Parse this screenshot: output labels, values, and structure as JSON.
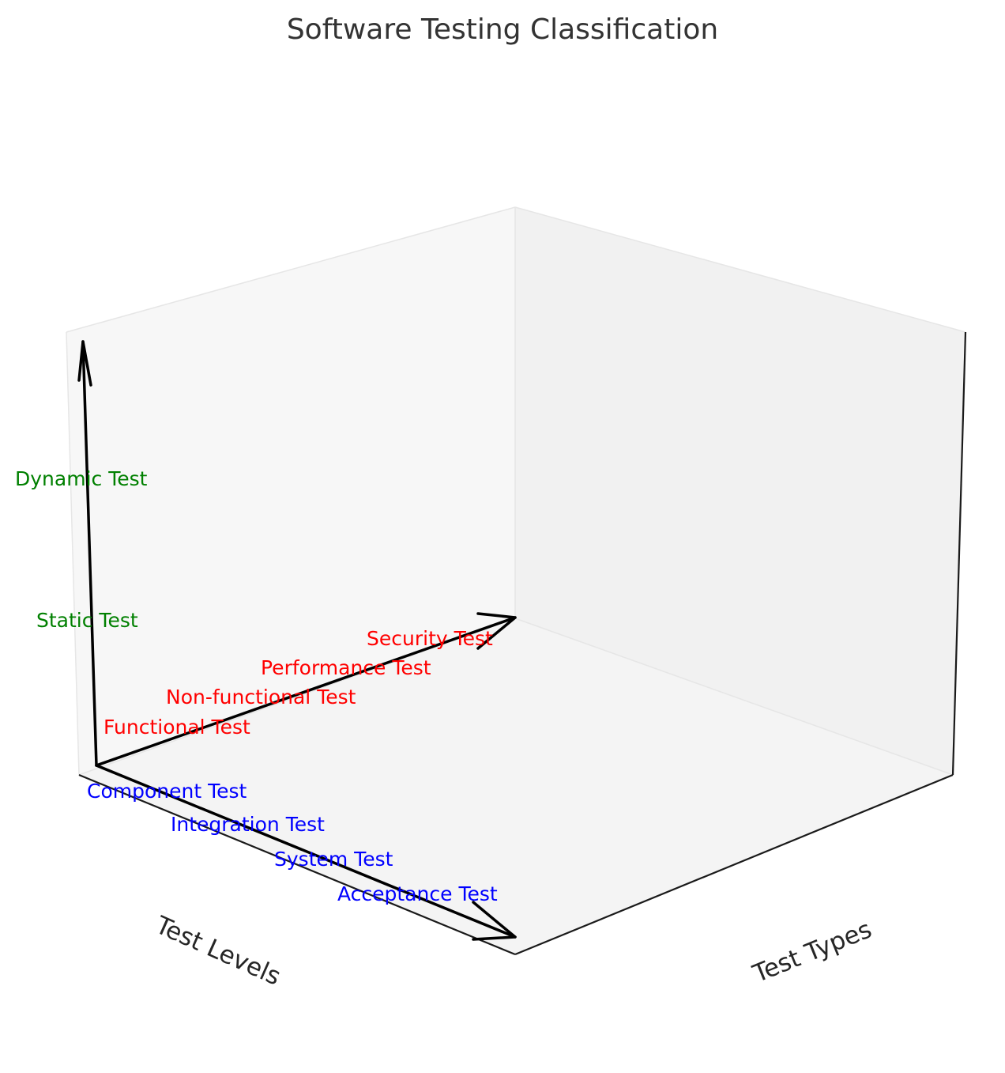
{
  "title": "Software Testing Classification",
  "axes": {
    "levels_title": "Test Levels",
    "types_title": "Test Types"
  },
  "labels": {
    "levels": [
      "Component Test",
      "Integration Test",
      "System Test",
      "Acceptance Test"
    ],
    "types": [
      "Functional Test",
      "Non-functional Test",
      "Performance Test",
      "Security Test"
    ],
    "phases": [
      "Static Test",
      "Dynamic Test"
    ]
  },
  "colors": {
    "levels": "#0000ff",
    "types": "#ff0000",
    "phases": "#008000",
    "arrows": "#000000",
    "left_pane": "#f7f7f7",
    "right_pane": "#f1f1f1",
    "floor_pane": "#f4f4f4"
  }
}
